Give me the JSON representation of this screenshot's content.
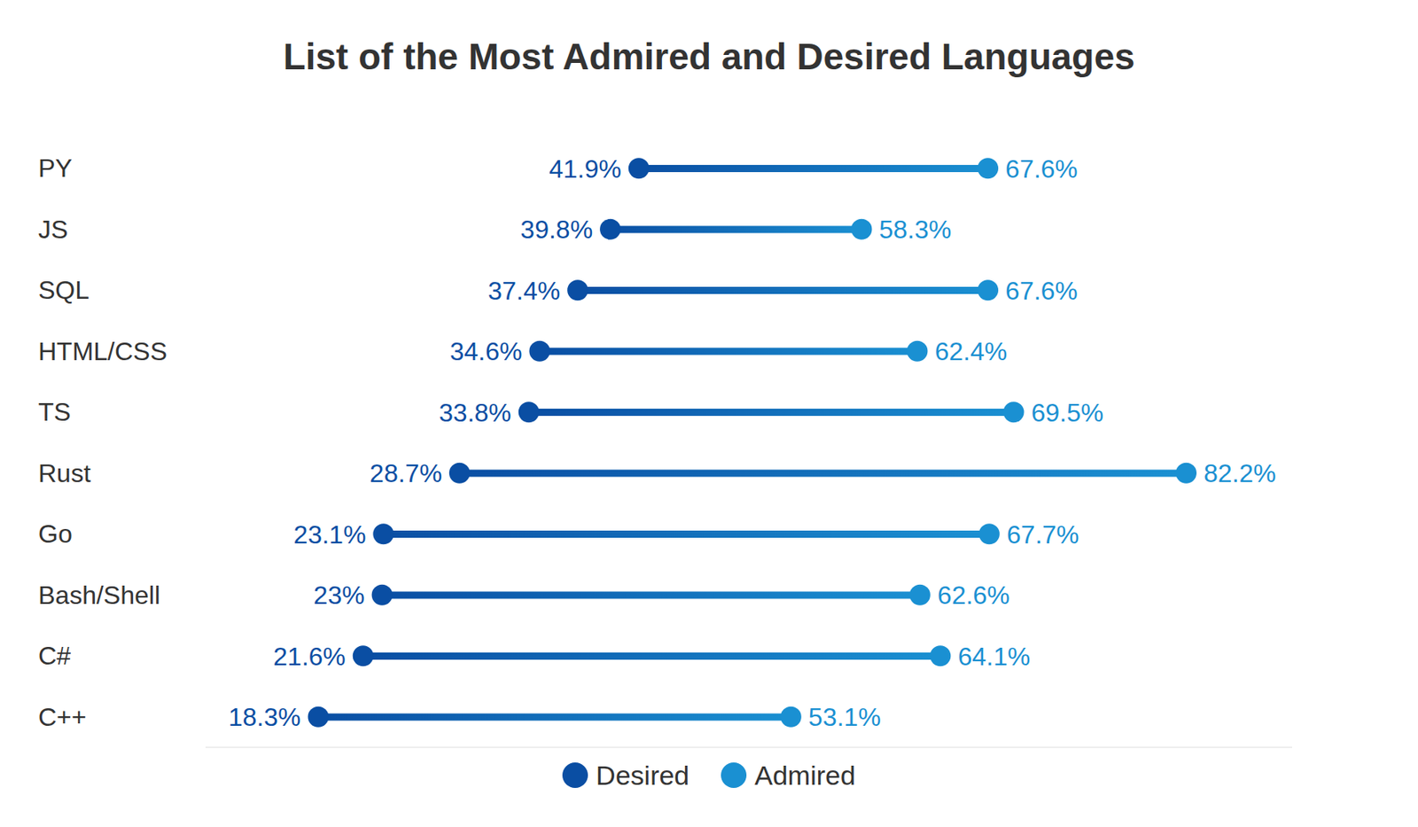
{
  "chart_data": {
    "type": "dumbbell",
    "title": "List of the Most Admired and Desired Languages",
    "orientation": "horizontal",
    "categories": [
      "PY",
      "JS",
      "SQL",
      "HTML/CSS",
      "TS",
      "Rust",
      "Go",
      "Bash/Shell",
      "C#",
      "C++"
    ],
    "series": [
      {
        "name": "Desired",
        "color": "#0a4ea3",
        "values": [
          41.9,
          39.8,
          37.4,
          34.6,
          33.8,
          28.7,
          23.1,
          23,
          21.6,
          18.3
        ],
        "value_labels": [
          "41.9%",
          "39.8%",
          "37.4%",
          "34.6%",
          "33.8%",
          "28.7%",
          "23.1%",
          "23%",
          "21.6%",
          "18.3%"
        ]
      },
      {
        "name": "Admired",
        "color": "#1a90d2",
        "values": [
          67.6,
          58.3,
          67.6,
          62.4,
          69.5,
          82.2,
          67.7,
          62.6,
          64.1,
          53.1
        ],
        "value_labels": [
          "67.6%",
          "58.3%",
          "67.6%",
          "62.4%",
          "69.5%",
          "82.2%",
          "67.7%",
          "62.6%",
          "64.1%",
          "53.1%"
        ]
      }
    ],
    "xlim": [
      10,
      90
    ],
    "data_labels": true,
    "tick_labels": "y",
    "legend": "bottom"
  }
}
